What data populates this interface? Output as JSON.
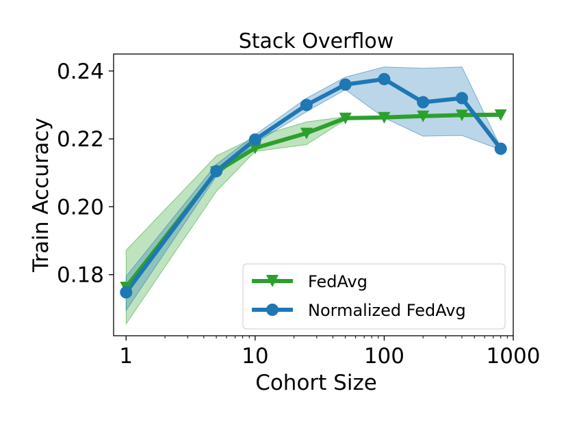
{
  "chart_data": {
    "type": "line",
    "title": "Stack Overflow",
    "xlabel": "Cohort Size",
    "ylabel": "Train Accuracy",
    "xscale": "log",
    "xlim": [
      0.8,
      1000
    ],
    "ylim": [
      0.162,
      0.245
    ],
    "x_ticks": [
      1,
      10,
      100,
      1000
    ],
    "x_tick_labels": [
      "1",
      "10",
      "100",
      "1000"
    ],
    "y_ticks": [
      0.18,
      0.2,
      0.22,
      0.24
    ],
    "y_tick_labels": [
      "0.18",
      "0.20",
      "0.22",
      "0.24"
    ],
    "grid": false,
    "legend_position": "lower-right",
    "x": [
      1,
      5,
      10,
      25,
      50,
      100,
      200,
      400,
      800
    ],
    "series": [
      {
        "name": "FedAvg",
        "color": "#2ca02c",
        "marker": "triangle-down",
        "values": [
          0.1763,
          0.2103,
          0.2173,
          0.2217,
          0.2261,
          0.2263,
          0.2267,
          0.227,
          0.2271
        ],
        "lower": [
          0.1655,
          0.2045,
          0.2163,
          0.2183,
          0.2256,
          0.226,
          0.2263,
          0.2265,
          0.2266
        ],
        "upper": [
          0.1872,
          0.215,
          0.2205,
          0.225,
          0.2265,
          0.2268,
          0.2272,
          0.2275,
          0.2277
        ]
      },
      {
        "name": "Normalized FedAvg",
        "color": "#1f77b4",
        "marker": "circle",
        "values": [
          0.1748,
          0.2105,
          0.2198,
          0.23,
          0.236,
          0.2376,
          0.2308,
          0.232,
          0.2171
        ],
        "lower": [
          0.1695,
          0.209,
          0.2188,
          0.228,
          0.2345,
          0.2262,
          0.2208,
          0.221,
          0.2168
        ],
        "upper": [
          0.1795,
          0.2125,
          0.2212,
          0.232,
          0.2382,
          0.2412,
          0.2408,
          0.2412,
          0.2175
        ]
      }
    ]
  }
}
